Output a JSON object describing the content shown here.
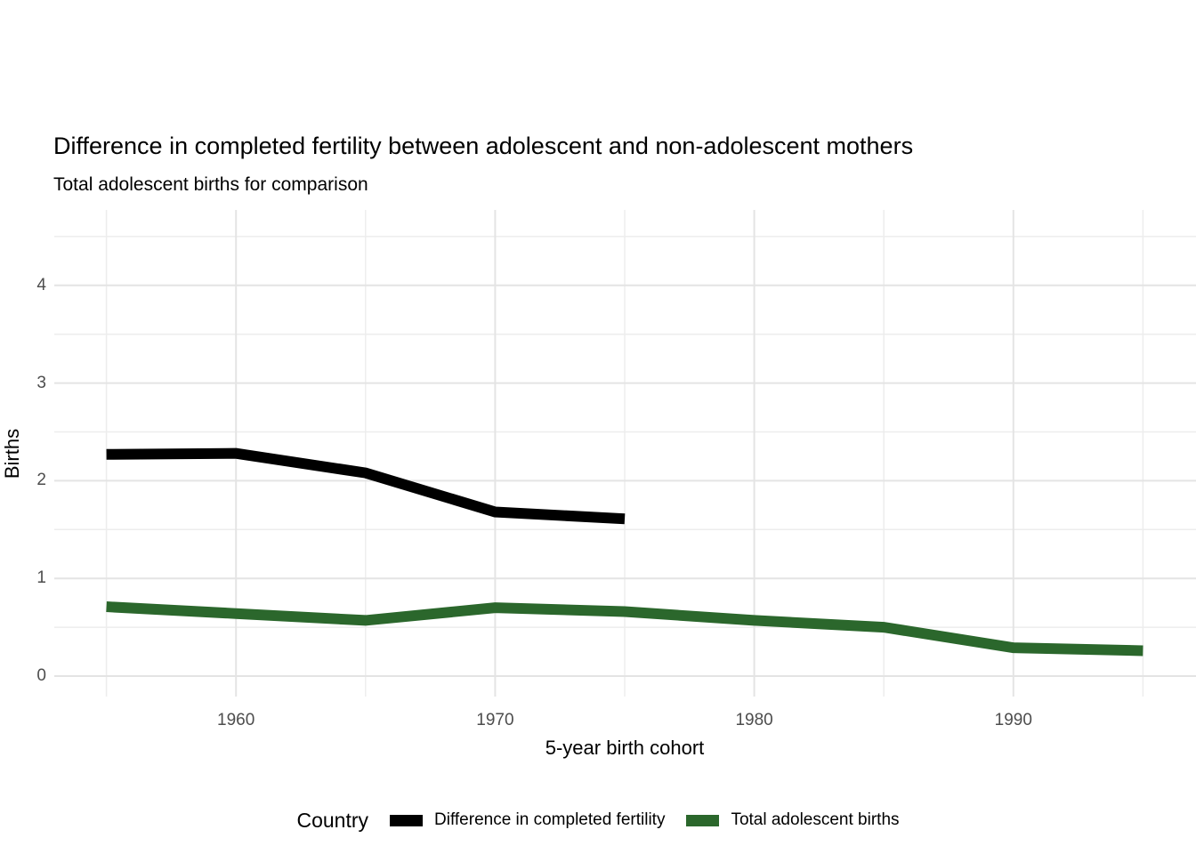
{
  "title": "Difference in completed fertility between adolescent and non-adolescent mothers",
  "subtitle": "Total adolescent births for comparison",
  "colors": {
    "difference_line": "#000000",
    "adolescent_line": "#2b672c",
    "grid_major": "#e4e4e4",
    "grid_minor": "#ededed",
    "tick_label": "#4d4d4d"
  },
  "chart_data": {
    "type": "line",
    "title": "Difference in completed fertility between adolescent and non-adolescent mothers",
    "subtitle": "Total adolescent births for comparison",
    "xlabel": "5-year birth cohort",
    "ylabel": "Births",
    "xlim": [
      1953,
      1997
    ],
    "ylim": [
      -0.2,
      4.77
    ],
    "x_ticks": [
      1960,
      1970,
      1980,
      1990
    ],
    "x_minor_ticks": [
      1955,
      1965,
      1975,
      1985,
      1995
    ],
    "y_ticks": [
      0,
      1,
      2,
      3,
      4
    ],
    "y_minor_ticks": [
      0.5,
      1.5,
      2.5,
      3.5,
      4.5
    ],
    "grid": "major+minor",
    "legend_position": "bottom",
    "legend_title": "Country",
    "series": [
      {
        "name": "Difference in completed fertility",
        "color": "#000000",
        "x": [
          1955,
          1960,
          1965,
          1970,
          1975
        ],
        "values": [
          2.27,
          2.28,
          2.08,
          1.68,
          1.61
        ]
      },
      {
        "name": "Total adolescent births",
        "color": "#2b672c",
        "x": [
          1955,
          1960,
          1965,
          1970,
          1975,
          1980,
          1985,
          1990,
          1995
        ],
        "values": [
          0.71,
          0.64,
          0.57,
          0.7,
          0.66,
          0.57,
          0.5,
          0.29,
          0.26
        ]
      }
    ]
  },
  "legend": {
    "title": "Country",
    "items": [
      {
        "label": "Difference in completed fertility",
        "color": "#000000"
      },
      {
        "label": "Total adolescent births",
        "color": "#2b672c"
      }
    ]
  },
  "axis": {
    "x_title": "5-year birth cohort",
    "y_title": "Births"
  }
}
